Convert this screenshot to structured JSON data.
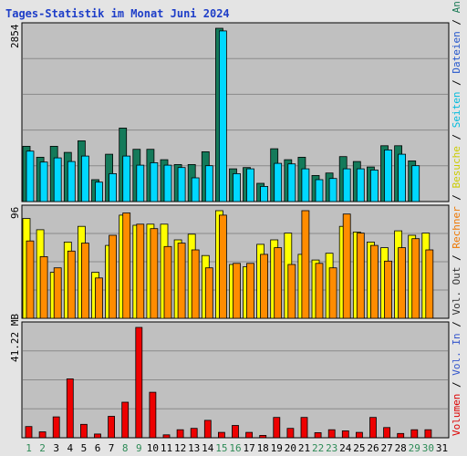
{
  "title": "Tages-Statistik im Monat Juni 2024",
  "colors": {
    "background": "#e4e4e4",
    "plot_bg": "#c0c0c0",
    "grid": "#8a8a8a",
    "title": "#1e3ec8",
    "weekend_tick": "#2e8b57",
    "weekday_tick": "#000000"
  },
  "right_legend": [
    {
      "text": "Volumen",
      "color": "#dd0000"
    },
    {
      "text": " / ",
      "color": "#000000"
    },
    {
      "text": "Vol. In",
      "color": "#3355cc"
    },
    {
      "text": " / ",
      "color": "#000000"
    },
    {
      "text": "Vol. Out",
      "color": "#333333"
    },
    {
      "text": " / ",
      "color": "#000000"
    },
    {
      "text": "Rechner",
      "color": "#ee7700"
    },
    {
      "text": " / ",
      "color": "#000000"
    },
    {
      "text": "Besuche",
      "color": "#cccc00"
    },
    {
      "text": " / ",
      "color": "#000000"
    },
    {
      "text": "Seiten",
      "color": "#00bbdd"
    },
    {
      "text": " / ",
      "color": "#000000"
    },
    {
      "text": "Dateien",
      "color": "#2255cc"
    },
    {
      "text": " / ",
      "color": "#000000"
    },
    {
      "text": "Anfragen",
      "color": "#1a7a55"
    }
  ],
  "chart_data": [
    {
      "type": "bar",
      "panel": "top",
      "ymax_label": "2854",
      "ylim": [
        0,
        2854
      ],
      "categories": [
        "1",
        "2",
        "3",
        "4",
        "5",
        "6",
        "7",
        "8",
        "9",
        "10",
        "11",
        "12",
        "13",
        "14",
        "15",
        "16",
        "17",
        "18",
        "19",
        "20",
        "21",
        "22",
        "23",
        "24",
        "25",
        "26",
        "27",
        "28",
        "29",
        "30",
        "31"
      ],
      "weekend": [
        1,
        2,
        8,
        9,
        15,
        16,
        22,
        23,
        29,
        30
      ],
      "series": [
        {
          "name": "Anfragen",
          "color": "#147a5a",
          "values": [
            910,
            730,
            910,
            810,
            1000,
            360,
            780,
            1210,
            860,
            860,
            690,
            610,
            610,
            820,
            2854,
            540,
            560,
            300,
            870,
            690,
            730,
            430,
            470,
            740,
            660,
            570,
            920,
            920,
            670,
            0,
            0
          ]
        },
        {
          "name": "Dateien",
          "color": "#00d8ff",
          "values": [
            830,
            650,
            720,
            660,
            750,
            320,
            460,
            750,
            600,
            640,
            600,
            560,
            390,
            590,
            2810,
            460,
            540,
            250,
            630,
            620,
            540,
            360,
            380,
            540,
            540,
            520,
            850,
            780,
            590,
            0,
            0
          ]
        }
      ]
    },
    {
      "type": "bar",
      "panel": "middle",
      "ymax_label": "96",
      "ylim": [
        0,
        96
      ],
      "categories": [
        "1",
        "2",
        "3",
        "4",
        "5",
        "6",
        "7",
        "8",
        "9",
        "10",
        "11",
        "12",
        "13",
        "14",
        "15",
        "16",
        "17",
        "18",
        "19",
        "20",
        "21",
        "22",
        "23",
        "24",
        "25",
        "26",
        "27",
        "28",
        "29",
        "30",
        "31"
      ],
      "series": [
        {
          "name": "Besuche",
          "color": "#ffff00",
          "values": [
            89,
            79,
            41,
            68,
            82,
            41,
            65,
            92,
            83,
            84,
            84,
            70,
            75,
            56,
            96,
            48,
            46,
            66,
            70,
            76,
            57,
            52,
            58,
            82,
            77,
            68,
            63,
            78,
            74,
            76,
            0
          ]
        },
        {
          "name": "Rechner",
          "color": "#ff8c00",
          "values": [
            69,
            55,
            45,
            60,
            67,
            36,
            74,
            94,
            84,
            80,
            64,
            67,
            61,
            45,
            92,
            49,
            49,
            57,
            63,
            48,
            96,
            49,
            45,
            93,
            76,
            65,
            51,
            63,
            71,
            61,
            0
          ]
        }
      ]
    },
    {
      "type": "bar",
      "panel": "bottom",
      "ymax_label": "41.22 MB",
      "ylim": [
        0,
        41.22
      ],
      "categories": [
        "1",
        "2",
        "3",
        "4",
        "5",
        "6",
        "7",
        "8",
        "9",
        "10",
        "11",
        "12",
        "13",
        "14",
        "15",
        "16",
        "17",
        "18",
        "19",
        "20",
        "21",
        "22",
        "23",
        "24",
        "25",
        "26",
        "27",
        "28",
        "29",
        "30",
        "31"
      ],
      "series": [
        {
          "name": "Volumen",
          "color": "#ee0000",
          "values": [
            4.2,
            2.2,
            7.8,
            22.0,
            5.0,
            1.4,
            8.0,
            13.3,
            41.22,
            17.0,
            1.1,
            3.0,
            3.5,
            6.5,
            2.0,
            4.6,
            2.0,
            0.9,
            7.6,
            3.5,
            7.6,
            1.9,
            3.0,
            2.6,
            2.0,
            7.6,
            3.8,
            1.6,
            3.0,
            3.0,
            0
          ]
        }
      ]
    }
  ]
}
